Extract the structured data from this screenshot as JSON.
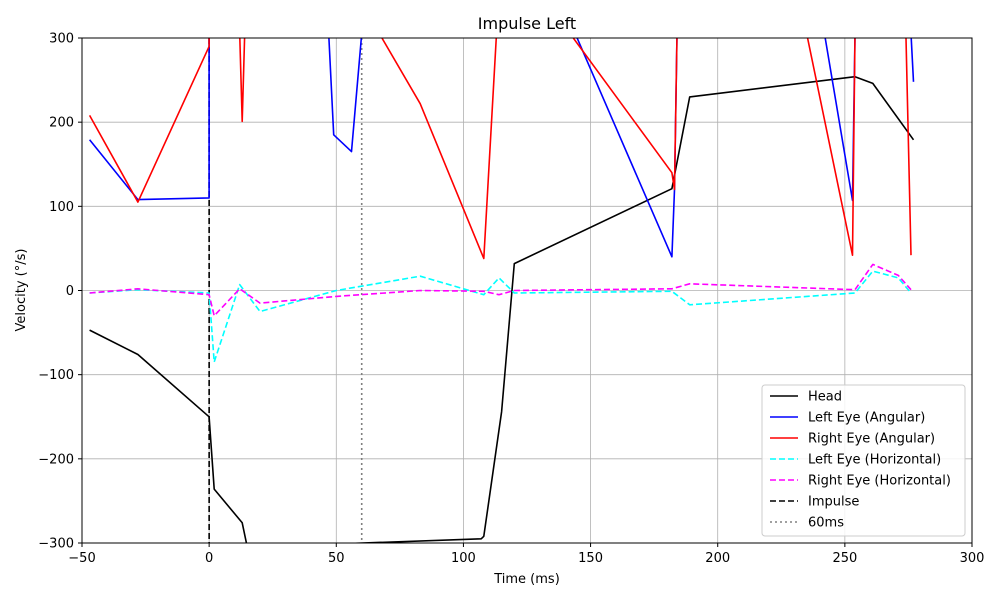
{
  "chart_data": {
    "type": "line",
    "title": "Impulse Left",
    "xlabel": "Time (ms)",
    "ylabel": "Velocity (°/s)",
    "xlim": [
      -50,
      300
    ],
    "ylim": [
      -300,
      300
    ],
    "xticks": [
      -50,
      0,
      50,
      100,
      150,
      200,
      250,
      300
    ],
    "yticks": [
      -300,
      -200,
      -100,
      0,
      100,
      200,
      300
    ],
    "xtick_labels": [
      "−50",
      "0",
      "50",
      "100",
      "150",
      "200",
      "250",
      "300"
    ],
    "ytick_labels": [
      "−300",
      "−200",
      "−100",
      "0",
      "100",
      "200",
      "300"
    ],
    "grid": true,
    "legend_position": "lower-right",
    "series": [
      {
        "name": "Head",
        "color": "#000000",
        "dash": "solid",
        "x": [
          -47,
          -28,
          0,
          2,
          13,
          15,
          107,
          108,
          115,
          120,
          182,
          189,
          254,
          261,
          277
        ],
        "y": [
          -47,
          -76,
          -150,
          -236,
          -276,
          -305,
          -295,
          -292,
          -144,
          32,
          121,
          230,
          254,
          246,
          179
        ]
      },
      {
        "name": "Left Eye (Angular)",
        "color": "#0000ff",
        "dash": "solid",
        "x": [
          -47,
          -28,
          0,
          0,
          47,
          49,
          56,
          60,
          144,
          182,
          183,
          184,
          242,
          253,
          254,
          276,
          277
        ],
        "y": [
          179,
          108,
          110,
          305,
          305,
          185,
          165,
          305,
          305,
          40,
          120,
          305,
          305,
          107,
          305,
          305,
          248
        ]
      },
      {
        "name": "Right Eye (Angular)",
        "color": "#ff0000",
        "dash": "solid",
        "x": [
          -47,
          -28,
          0,
          0,
          12,
          13,
          14,
          67,
          83,
          108,
          113,
          142,
          182,
          183,
          184,
          235,
          253,
          254,
          255,
          274,
          276
        ],
        "y": [
          208,
          105,
          290,
          305,
          305,
          201,
          305,
          305,
          222,
          38,
          305,
          305,
          140,
          120,
          305,
          305,
          42,
          305,
          305,
          305,
          42
        ]
      },
      {
        "name": "Left Eye (Horizontal)",
        "color": "#00ffff",
        "dash": "dashed",
        "x": [
          -47,
          -28,
          0,
          2,
          12,
          20,
          50,
          83,
          108,
          114,
          120,
          182,
          189,
          254,
          261,
          271,
          276
        ],
        "y": [
          -3,
          1,
          -3,
          -85,
          7,
          -25,
          0,
          17,
          -5,
          15,
          -3,
          -1,
          -17,
          -3,
          23,
          15,
          -3
        ]
      },
      {
        "name": "Right Eye (Horizontal)",
        "color": "#ff00ff",
        "dash": "dashed",
        "x": [
          -47,
          -28,
          0,
          2,
          12,
          20,
          50,
          83,
          108,
          114,
          120,
          182,
          189,
          254,
          261,
          271,
          276
        ],
        "y": [
          -3,
          2,
          -5,
          -30,
          2,
          -15,
          -7,
          0,
          -1,
          -5,
          0,
          2,
          8,
          1,
          31,
          18,
          1
        ]
      }
    ],
    "vlines": [
      {
        "name": "Impulse",
        "x": 0,
        "color": "#000000",
        "dash": "dashed"
      },
      {
        "name": "60ms",
        "x": 60,
        "color": "#808080",
        "dash": "dotted"
      }
    ]
  }
}
